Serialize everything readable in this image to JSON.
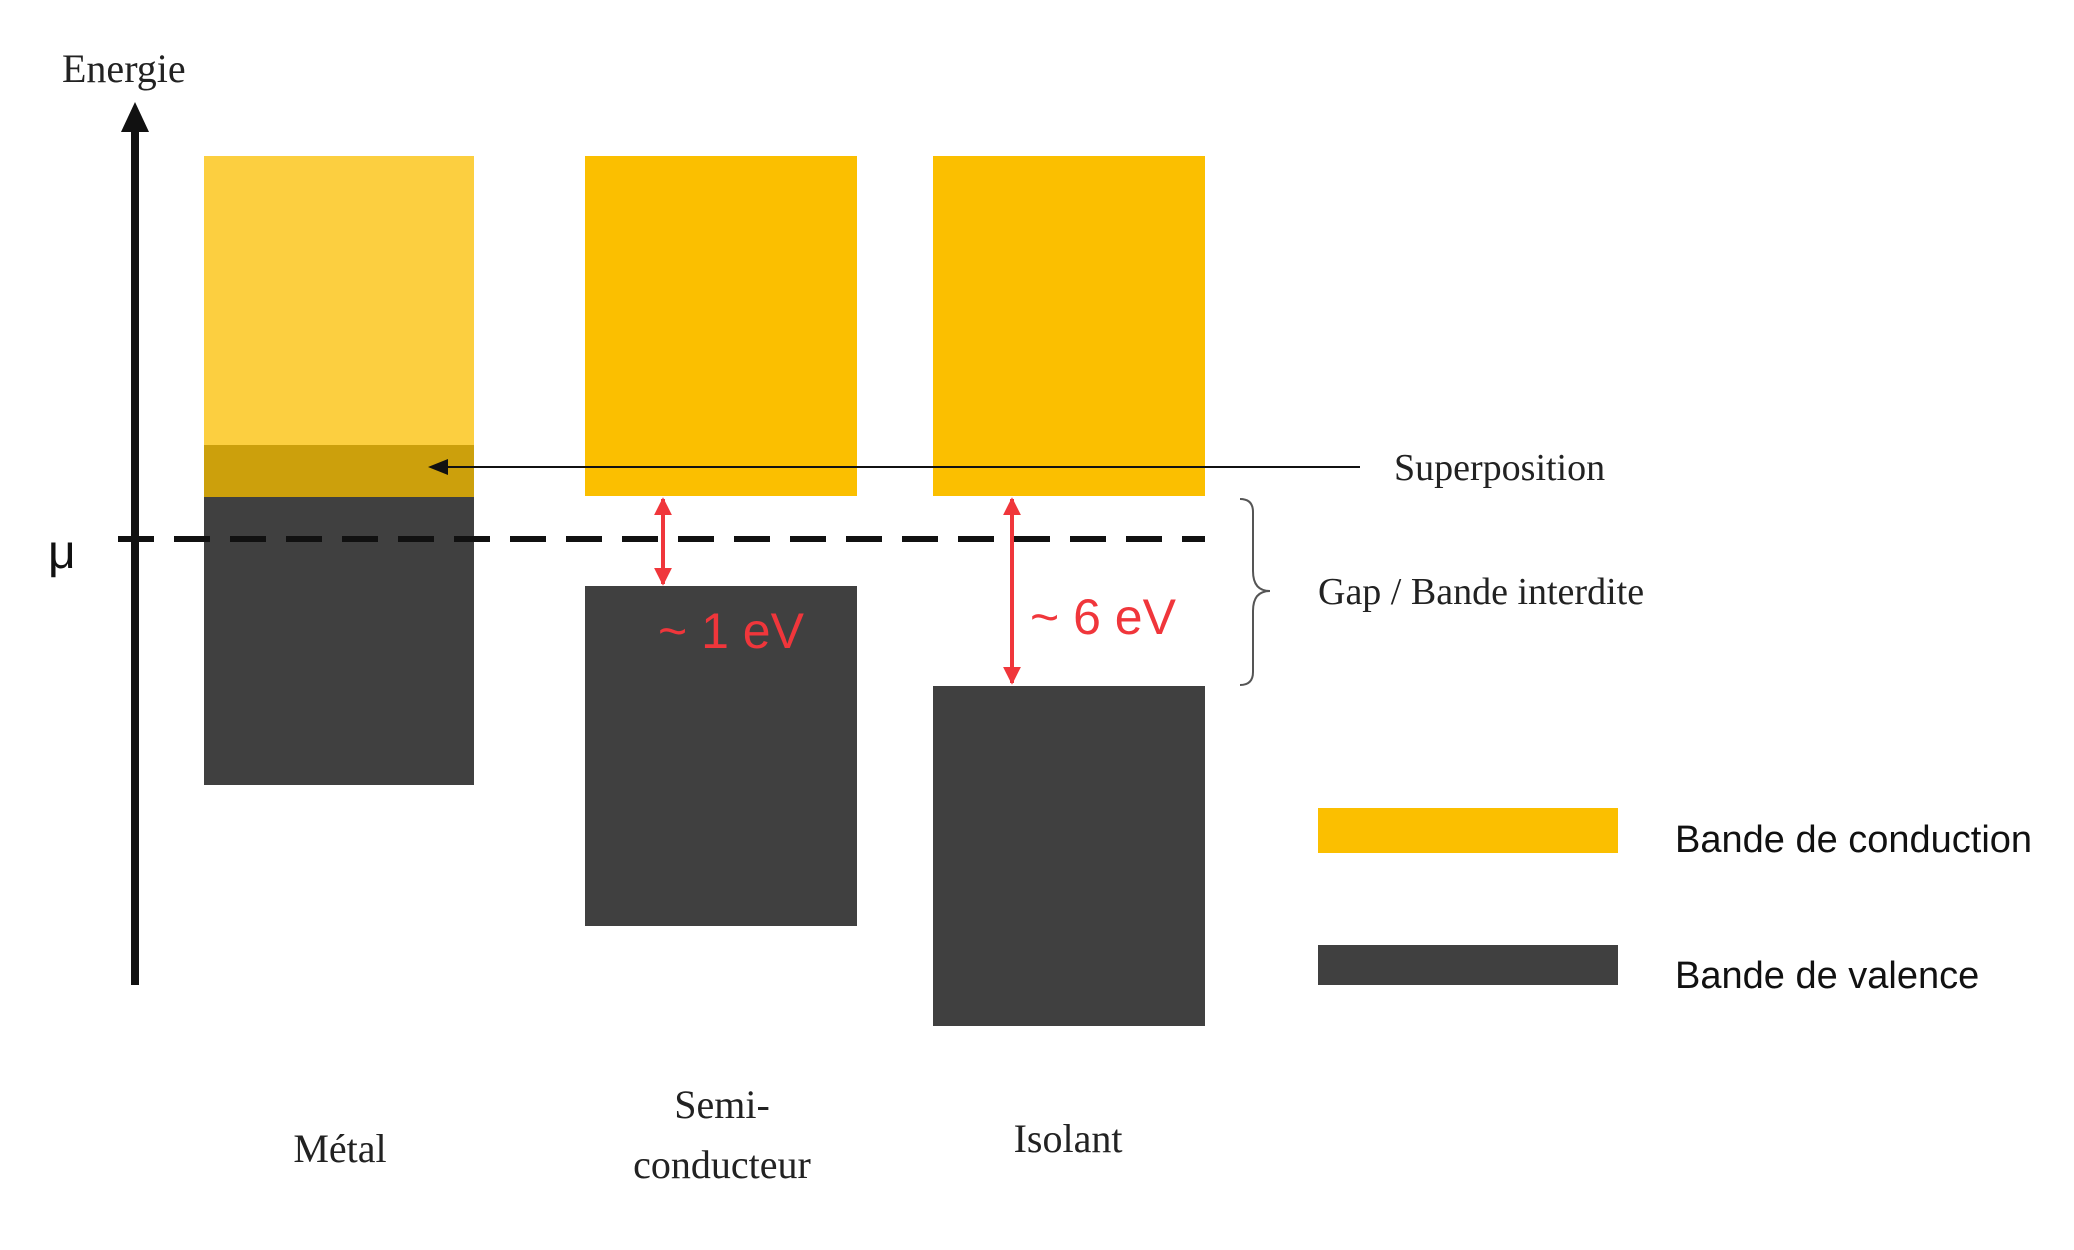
{
  "axis": {
    "label": "Energie"
  },
  "mu_label": "μ",
  "columns": [
    {
      "label_lines": [
        "Métal"
      ]
    },
    {
      "label_lines": [
        "Semi-",
        "conducteur"
      ]
    },
    {
      "label_lines": [
        "Isolant"
      ]
    }
  ],
  "annotations": {
    "superposition": "Superposition",
    "gap": "Gap / Bande interdite",
    "gap_semiconductor": "~ 1 eV",
    "gap_insulator": "~ 6 eV"
  },
  "legend": [
    {
      "label": "Bande de conduction",
      "color": "#FBBF00"
    },
    {
      "label": "Bande de valence",
      "color": "#404040"
    }
  ],
  "colors": {
    "conduction_band": "#FBBF00",
    "conduction_band_metal": "#FCCF40",
    "overlap": "#CCA00C",
    "valence_band": "#404040",
    "gap_arrow": "#F0363B",
    "axis": "#111111"
  }
}
